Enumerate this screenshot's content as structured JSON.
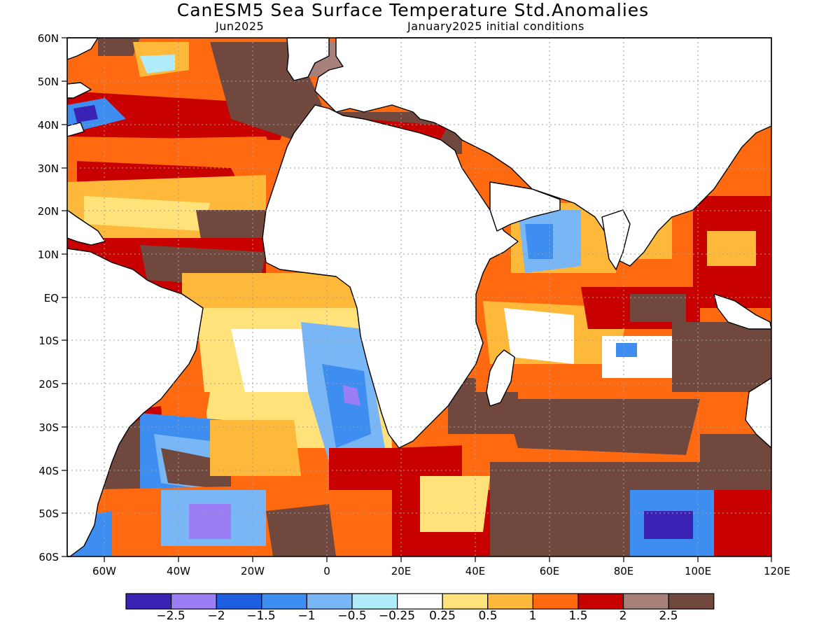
{
  "title": "CanESM5 Sea Surface Temperature Std.Anomalies",
  "subtitle_left": "Jun2025",
  "subtitle_right": "January2025 initial conditions",
  "lat_ticks": [
    "60N",
    "50N",
    "40N",
    "30N",
    "20N",
    "10N",
    "EQ",
    "10S",
    "20S",
    "30S",
    "40S",
    "50S",
    "60S"
  ],
  "lon_ticks": [
    "60W",
    "40W",
    "20W",
    "0",
    "20E",
    "40E",
    "60E",
    "80E",
    "100E",
    "120E"
  ],
  "colorbar": {
    "colors": [
      "#3a22b4",
      "#9b7ef5",
      "#1d5fe0",
      "#3d8ef0",
      "#78b6f5",
      "#b0ecfa",
      "#ffffff",
      "#ffe27a",
      "#ffb93a",
      "#ff6a10",
      "#c80000",
      "#a7807a",
      "#70483d"
    ],
    "labels": [
      "−2.5",
      "−2",
      "−1.5",
      "−1",
      "−0.5",
      "−0.25",
      "0.25",
      "0.5",
      "1",
      "1.5",
      "2",
      "2.5"
    ]
  },
  "colors": {
    "land": "#ffffff",
    "grid": "#a0a0a0",
    "coast": "#000000"
  }
}
